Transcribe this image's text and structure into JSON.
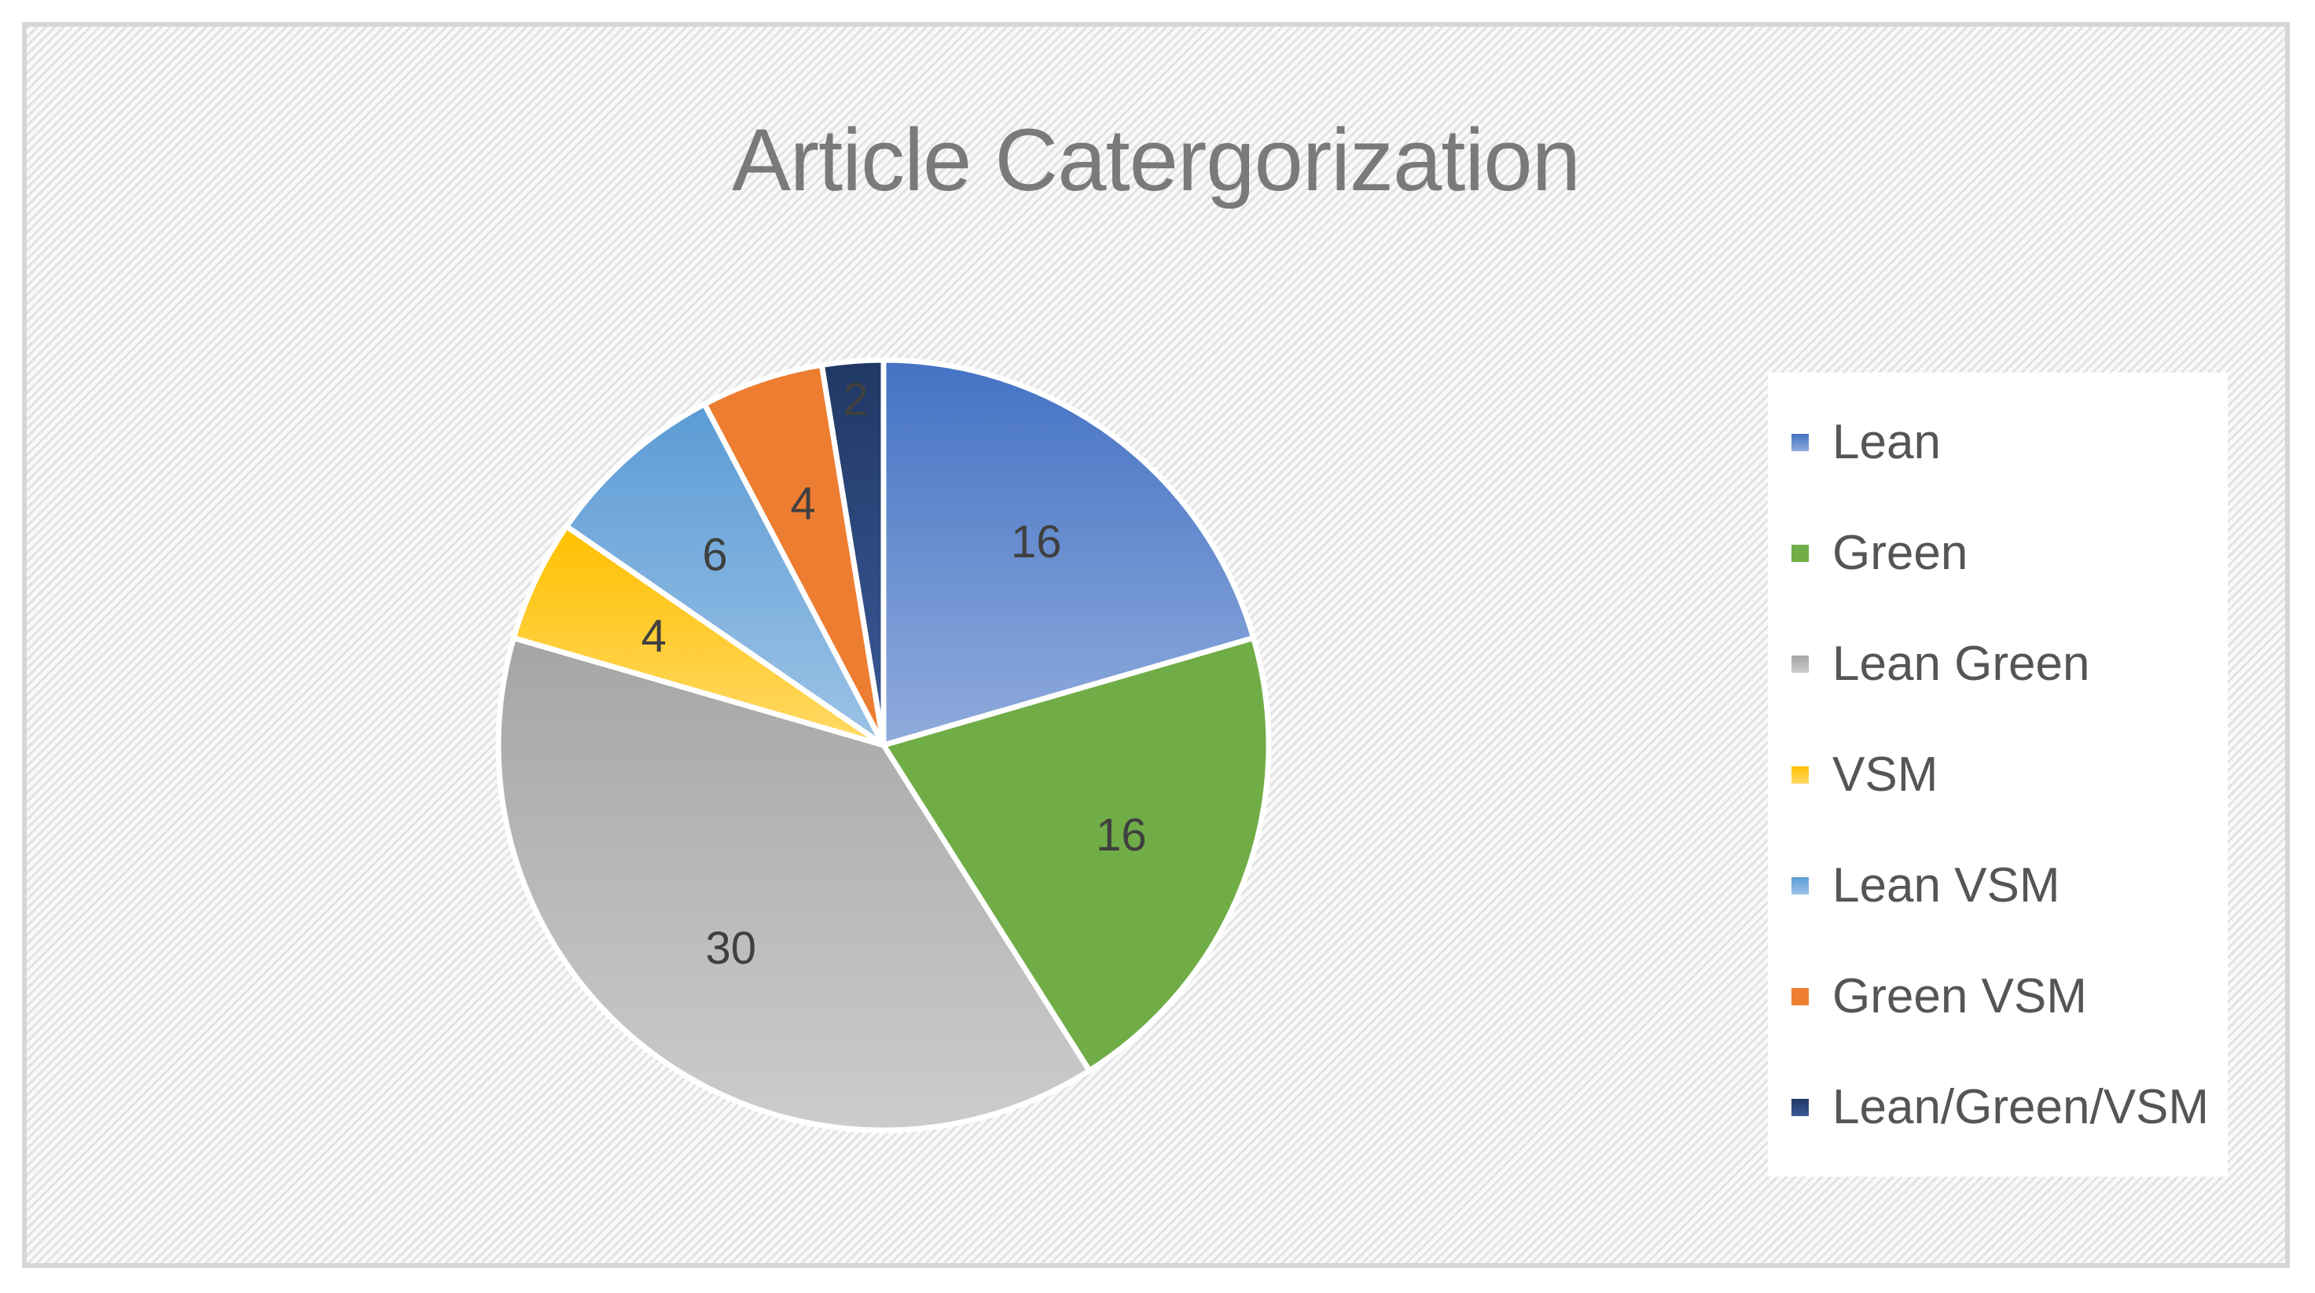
{
  "chart_data": {
    "type": "pie",
    "title": "Article Catergorization",
    "legend_position": "right",
    "slices": [
      {
        "label": "Lean",
        "value": 16,
        "color": "#4472C4",
        "color_light": "#8FABDC"
      },
      {
        "label": "Green",
        "value": 16,
        "color": "#70AD47",
        "color_light": "#70AD47"
      },
      {
        "label": "Lean Green",
        "value": 30,
        "color": "#A5A5A5",
        "color_light": "#CCCCCC"
      },
      {
        "label": "VSM",
        "value": 4,
        "color": "#FFC000",
        "color_light": "#FFD966"
      },
      {
        "label": "Lean VSM",
        "value": 6,
        "color": "#5B9BD5",
        "color_light": "#9DC3E6"
      },
      {
        "label": "Green VSM",
        "value": 4,
        "color": "#ED7D31",
        "color_light": "#ED7D31"
      },
      {
        "label": "Lean/Green/VSM",
        "value": 2,
        "color": "#203864",
        "color_light": "#3B5A99"
      }
    ]
  }
}
